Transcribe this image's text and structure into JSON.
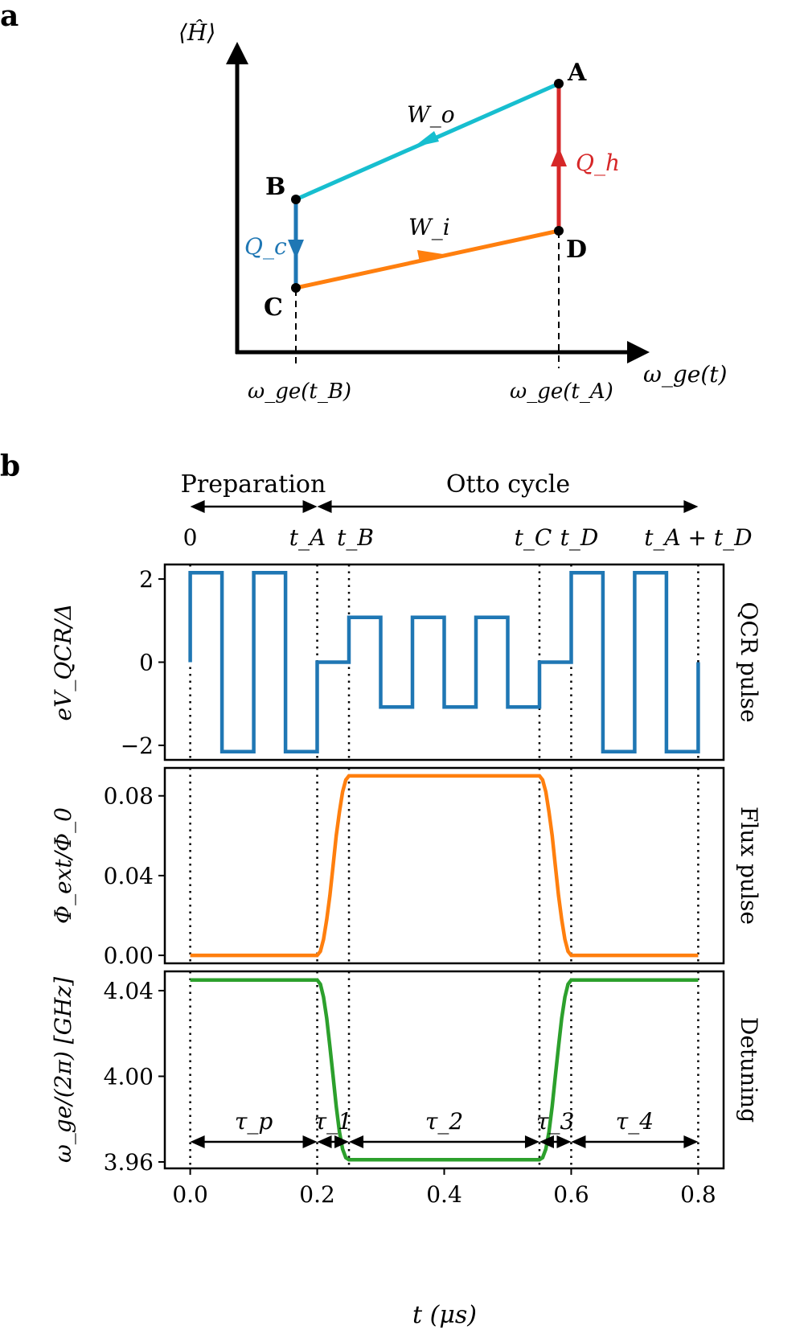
{
  "colors": {
    "qcr": "#1f77b4",
    "flux": "#ff7f0e",
    "detuning": "#2ca02c",
    "cold": "#1f77b4",
    "hot": "#d62728",
    "outer": "#17becf",
    "inner": "#ff7f0e"
  },
  "panel_a": {
    "label": "a",
    "y_axis_label": "⟨Ĥ⟩",
    "x_axis_label": "ω_ge(t)",
    "tick_tB": "ω_ge(t_B)",
    "tick_tA": "ω_ge(t_A)",
    "points": {
      "A": "A",
      "B": "B",
      "C": "C",
      "D": "D"
    },
    "process_labels": {
      "Wo": "W_o",
      "Wi": "W_i",
      "Qh": "Q_h",
      "Qc": "Q_c"
    }
  },
  "panel_b": {
    "label": "b",
    "preparation_label": "Preparation",
    "otto_label": "Otto cycle",
    "time_markers": [
      "0",
      "t_A",
      "t_B",
      "t_C",
      "t_D",
      "t_A + t_D"
    ],
    "tau_labels": [
      "τ_p",
      "τ_1",
      "τ_2",
      "τ_3",
      "τ_4"
    ],
    "xlabel": "t (μs)"
  },
  "chart_data": [
    {
      "type": "line",
      "title": "",
      "side_label": "QCR pulse",
      "ylabel": "eV_QCR/Δ",
      "xlim": [
        -0.04,
        0.84
      ],
      "ylim": [
        -2.35,
        2.35
      ],
      "yticks": [
        "2",
        "0",
        "−2"
      ],
      "series": [
        {
          "x": [
            0.0,
            0.0,
            0.05,
            0.05,
            0.1,
            0.1,
            0.15,
            0.15,
            0.2,
            0.2,
            0.25,
            0.25,
            0.3,
            0.3,
            0.35,
            0.35,
            0.4,
            0.4,
            0.45,
            0.45,
            0.5,
            0.5,
            0.55,
            0.55,
            0.6,
            0.6,
            0.65,
            0.65,
            0.7,
            0.7,
            0.75,
            0.75,
            0.8,
            0.8
          ],
          "y": [
            0,
            2.15,
            2.15,
            -2.15,
            -2.15,
            2.15,
            2.15,
            -2.15,
            -2.15,
            0,
            0,
            1.08,
            1.08,
            -1.08,
            -1.08,
            1.08,
            1.08,
            -1.08,
            -1.08,
            1.08,
            1.08,
            -1.08,
            -1.08,
            0,
            0,
            2.15,
            2.15,
            -2.15,
            -2.15,
            2.15,
            2.15,
            -2.15,
            -2.15,
            0
          ]
        }
      ]
    },
    {
      "type": "line",
      "title": "",
      "side_label": "Flux pulse",
      "ylabel": "Φ_ext/Φ_0",
      "xlim": [
        -0.04,
        0.84
      ],
      "ylim": [
        -0.004,
        0.094
      ],
      "yticks": [
        "0.08",
        "0.04",
        "0.00"
      ],
      "series": [
        {
          "x": [
            0.0,
            0.2,
            0.205,
            0.21,
            0.215,
            0.22,
            0.225,
            0.23,
            0.235,
            0.24,
            0.245,
            0.25,
            0.55,
            0.555,
            0.56,
            0.565,
            0.57,
            0.575,
            0.58,
            0.585,
            0.59,
            0.595,
            0.6,
            0.8
          ],
          "y": [
            0.0,
            0.0,
            0.002,
            0.008,
            0.018,
            0.03,
            0.045,
            0.06,
            0.072,
            0.082,
            0.088,
            0.09,
            0.09,
            0.088,
            0.082,
            0.072,
            0.06,
            0.045,
            0.03,
            0.018,
            0.008,
            0.002,
            0.0,
            0.0
          ]
        }
      ]
    },
    {
      "type": "line",
      "title": "",
      "side_label": "Detuning",
      "ylabel": "ω_ge/(2π) [GHz]",
      "xlabel": "t (μs)",
      "xlim": [
        -0.04,
        0.84
      ],
      "ylim": [
        3.957,
        4.049
      ],
      "yticks": [
        "4.04",
        "4.00",
        "3.96"
      ],
      "xticks": [
        "0.0",
        "0.2",
        "0.4",
        "0.6",
        "0.8"
      ],
      "series": [
        {
          "x": [
            0.0,
            0.2,
            0.205,
            0.21,
            0.215,
            0.22,
            0.225,
            0.23,
            0.235,
            0.24,
            0.245,
            0.25,
            0.55,
            0.555,
            0.56,
            0.565,
            0.57,
            0.575,
            0.58,
            0.585,
            0.59,
            0.595,
            0.6,
            0.8
          ],
          "y": [
            4.045,
            4.045,
            4.043,
            4.037,
            4.027,
            4.014,
            4.0,
            3.986,
            3.974,
            3.966,
            3.962,
            3.961,
            3.961,
            3.962,
            3.966,
            3.974,
            3.986,
            4.0,
            4.014,
            4.027,
            4.037,
            4.043,
            4.045,
            4.045
          ]
        }
      ]
    }
  ]
}
